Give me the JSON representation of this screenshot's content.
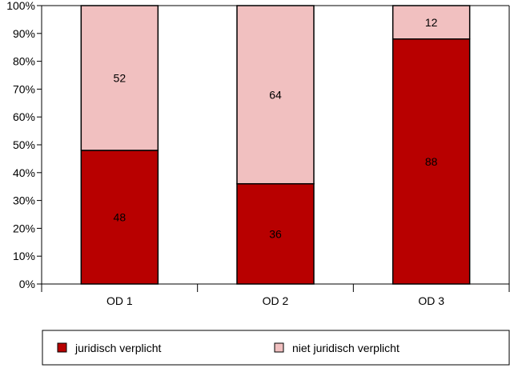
{
  "chart_data": {
    "type": "bar",
    "stacked": true,
    "percent": true,
    "title": "",
    "xlabel": "",
    "ylabel": "",
    "ylim": [
      0,
      100
    ],
    "yticks": [
      "0%",
      "10%",
      "20%",
      "30%",
      "40%",
      "50%",
      "60%",
      "70%",
      "80%",
      "90%",
      "100%"
    ],
    "categories": [
      "OD 1",
      "OD 2",
      "OD 3"
    ],
    "series": [
      {
        "name": "juridisch verplicht",
        "values": [
          48,
          36,
          88
        ],
        "color": "#b80000"
      },
      {
        "name": "niet juridisch verplicht",
        "values": [
          52,
          64,
          12
        ],
        "color": "#f1c0c0"
      }
    ],
    "grid": false,
    "legend_position": "bottom"
  }
}
